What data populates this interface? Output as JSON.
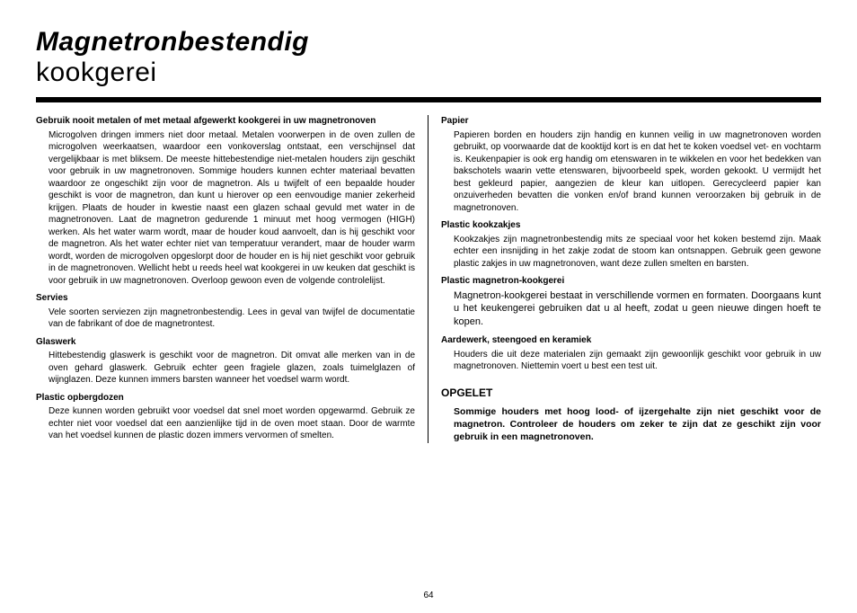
{
  "title": {
    "bold": "Magnetronbestendig",
    "light": "kookgerei"
  },
  "left": {
    "intro_head": "Gebruik nooit metalen of met metaal afgewerkt kookgerei in uw magnetronoven",
    "intro_body": "Microgolven dringen immers niet door metaal. Metalen voorwerpen in de oven zullen de microgolven weerkaatsen, waardoor een vonkoverslag ontstaat, een verschijnsel dat vergelijkbaar is met bliksem. De meeste hittebestendige niet-metalen houders zijn geschikt voor gebruik in uw magnetronoven. Sommige houders kunnen echter materiaal bevatten waardoor ze ongeschikt zijn voor de magnetron. Als u twijfelt of een bepaalde houder geschikt is voor de magnetron, dan kunt u hierover op een eenvoudige manier zekerheid krijgen. Plaats de houder in kwestie naast een glazen schaal gevuld met water in de magnetronoven. Laat de magnetron gedurende 1 minuut met hoog vermogen (HIGH) werken. Als het water warm wordt, maar de houder koud aanvoelt, dan is hij geschikt voor de magnetron. Als het water echter niet van temperatuur verandert, maar de houder warm wordt, worden de microgolven opgeslorpt door de houder en is hij niet geschikt voor gebruik in de magnetronoven. Wellicht hebt u reeds heel wat kookgerei in uw keuken dat geschikt is voor gebruik in uw magnetronoven. Overloop gewoon even de volgende controlelijst.",
    "sections": [
      {
        "head": "Servies",
        "body": "Vele soorten serviezen zijn magnetronbestendig. Lees in geval van twijfel de documentatie van de fabrikant of doe de magnetrontest."
      },
      {
        "head": "Glaswerk",
        "body": "Hittebestendig glaswerk is geschikt voor de magnetron. Dit omvat alle merken van in de oven gehard glaswerk. Gebruik echter geen fragiele glazen, zoals tuimelglazen of wijnglazen. Deze kunnen immers barsten wanneer het voedsel warm wordt."
      },
      {
        "head": "Plastic opbergdozen",
        "body": "Deze kunnen worden gebruikt voor voedsel dat snel moet worden opgewarmd. Gebruik ze echter niet voor voedsel dat een aanzienlijke tijd in de oven moet staan. Door de warmte van het voedsel kunnen de plastic dozen immers vervormen of smelten."
      }
    ]
  },
  "right": {
    "sections": [
      {
        "head": "Papier",
        "body": "Papieren borden en houders zijn handig en kunnen veilig in uw magnetronoven worden gebruikt, op voorwaarde dat de kooktijd kort is en dat het te koken voedsel vet- en vochtarm is. Keukenpapier is ook erg handig om etenswaren in te wikkelen en voor het bedekken van bakschotels waarin vette etenswaren, bijvoorbeeld spek, worden gekookt. U vermijdt het best gekleurd papier, aangezien de kleur kan uitlopen. Gerecycleerd papier kan onzuiverheden bevatten die vonken en/of brand kunnen veroorzaken bij gebruik in de magnetronoven."
      },
      {
        "head": "Plastic kookzakjes",
        "body": "Kookzakjes zijn magnetronbestendig mits ze speciaal voor het koken bestemd zijn. Maak echter een insnijding in het zakje zodat de stoom kan ontsnappen. Gebruik geen gewone plastic zakjes in uw magnetronoven, want deze zullen smelten en barsten."
      },
      {
        "head": "Plastic magnetron-kookgerei",
        "body": "Magnetron-kookgerei bestaat in verschillende vormen en formaten. Doorgaans kunt u het keukengerei gebruiken dat u al heeft, zodat u geen nieuwe dingen hoeft te kopen."
      },
      {
        "head": "Aardewerk, steengoed en keramiek",
        "body": "Houders die uit deze materialen zijn gemaakt zijn gewoonlijk geschikt voor gebruik in uw magnetronoven. Niettemin voert u best een test uit."
      }
    ],
    "caution_head": "OPGELET",
    "caution_body": "Sommige houders met hoog lood- of ijzergehalte zijn niet geschikt voor de magnetron. Controleer de houders om zeker te zijn dat ze geschikt zijn voor gebruik in een magnetronoven."
  },
  "page_number": "64"
}
